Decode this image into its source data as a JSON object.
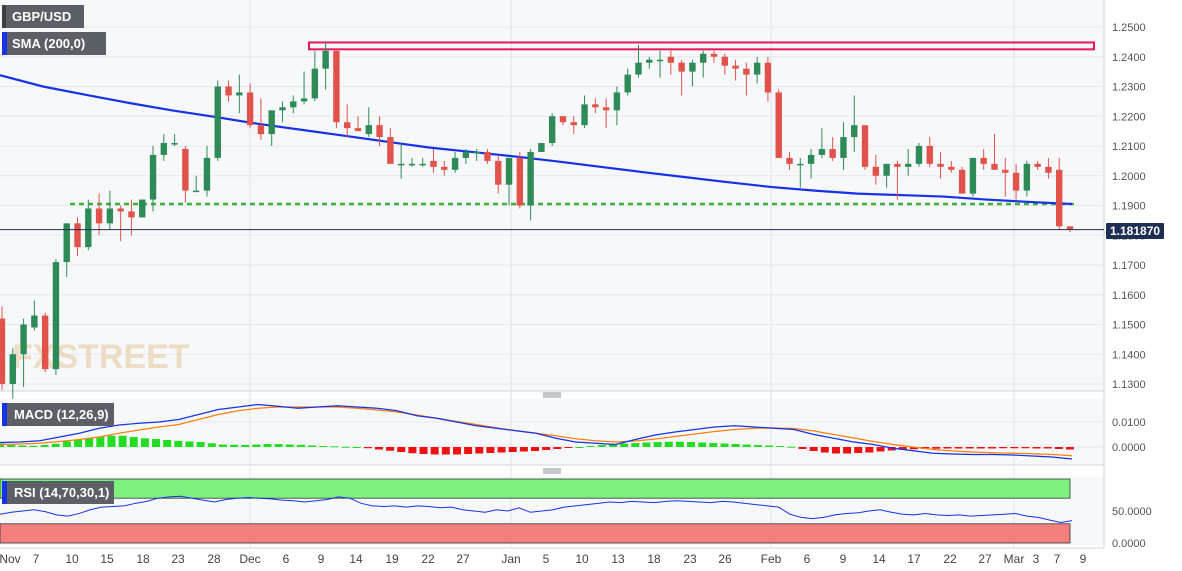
{
  "symbol": "GBP/USD",
  "indicators": {
    "sma_label": "SMA (200,0)",
    "macd_label": "MACD (12,26,9)",
    "rsi_label": "RSI (14,70,30,1)"
  },
  "watermark": "FXSTREET",
  "current_price_label": "1.181870",
  "price_axis": {
    "min": 1.125,
    "max": 1.255,
    "ticks": [
      "1.2500",
      "1.2400",
      "1.2300",
      "1.2200",
      "1.2100",
      "1.2000",
      "1.1900",
      "1.1800",
      "1.1700",
      "1.1600",
      "1.1500",
      "1.1400",
      "1.1300"
    ]
  },
  "macd_axis": {
    "ticks": [
      "0.0100",
      "0.0000"
    ]
  },
  "rsi_axis": {
    "ticks": [
      "50.0000",
      "0.0000"
    ]
  },
  "x_axis": {
    "ticks": [
      "Nov",
      "7",
      "10",
      "15",
      "18",
      "23",
      "28",
      "Dec",
      "6",
      "9",
      "14",
      "19",
      "22",
      "27",
      "Jan",
      "5",
      "10",
      "13",
      "18",
      "23",
      "26",
      "Feb",
      "6",
      "9",
      "14",
      "17",
      "22",
      "27",
      "Mar",
      "3",
      "7",
      "9"
    ]
  },
  "colors": {
    "up": "#2e8b57",
    "down": "#e0524a",
    "sma": "#1632e6",
    "macd": "#1632e6",
    "signal": "#ff7f0e",
    "hist_pos": "#22dd22",
    "hist_neg": "#ee1111",
    "resistance": "#e8175d",
    "support": "#3cb43c",
    "rsi_overbought": "#7ef07e",
    "rsi_oversold": "#f47f7f",
    "price_label": "#1f2f54"
  },
  "chart_data": {
    "type": "candlestick",
    "resistance_zone": [
      1.2425,
      1.2448
    ],
    "support_level": 1.1905,
    "current_price": 1.18187,
    "sma200": [
      1.2338,
      1.23,
      1.2272,
      1.2245,
      1.222,
      1.2198,
      1.2175,
      1.2155,
      1.2135,
      1.2115,
      1.2095,
      1.208,
      1.2065,
      1.2048,
      1.203,
      1.2012,
      1.1995,
      1.1978,
      1.1962,
      1.195,
      1.194,
      1.1935,
      1.193,
      1.192,
      1.1912,
      1.1905
    ],
    "candles": [
      [
        1.152,
        1.156,
        1.128,
        1.13
      ],
      [
        1.13,
        1.142,
        1.125,
        1.14
      ],
      [
        1.14,
        1.152,
        1.129,
        1.15
      ],
      [
        1.149,
        1.158,
        1.148,
        1.153
      ],
      [
        1.153,
        1.154,
        1.134,
        1.135
      ],
      [
        1.135,
        1.172,
        1.133,
        1.171
      ],
      [
        1.171,
        1.184,
        1.166,
        1.184
      ],
      [
        1.184,
        1.186,
        1.173,
        1.176
      ],
      [
        1.176,
        1.192,
        1.175,
        1.189
      ],
      [
        1.189,
        1.194,
        1.18,
        1.184
      ],
      [
        1.184,
        1.195,
        1.182,
        1.189
      ],
      [
        1.189,
        1.19,
        1.178,
        1.188
      ],
      [
        1.188,
        1.192,
        1.18,
        1.186
      ],
      [
        1.186,
        1.192,
        1.186,
        1.192
      ],
      [
        1.192,
        1.21,
        1.188,
        1.207
      ],
      [
        1.207,
        1.214,
        1.205,
        1.211
      ],
      [
        1.211,
        1.214,
        1.21,
        1.211
      ],
      [
        1.209,
        1.21,
        1.191,
        1.195
      ],
      [
        1.195,
        1.2,
        1.195,
        1.195
      ],
      [
        1.195,
        1.21,
        1.193,
        1.206
      ],
      [
        1.206,
        1.232,
        1.205,
        1.23
      ],
      [
        1.23,
        1.232,
        1.225,
        1.227
      ],
      [
        1.227,
        1.234,
        1.221,
        1.228
      ],
      [
        1.228,
        1.231,
        1.216,
        1.217
      ],
      [
        1.217,
        1.226,
        1.212,
        1.214
      ],
      [
        1.214,
        1.221,
        1.21,
        1.222
      ],
      [
        1.222,
        1.225,
        1.218,
        1.223
      ],
      [
        1.223,
        1.227,
        1.221,
        1.225
      ],
      [
        1.225,
        1.235,
        1.224,
        1.226
      ],
      [
        1.226,
        1.242,
        1.225,
        1.236
      ],
      [
        1.236,
        1.245,
        1.229,
        1.242
      ],
      [
        1.242,
        1.242,
        1.216,
        1.218
      ],
      [
        1.218,
        1.224,
        1.213,
        1.216
      ],
      [
        1.216,
        1.22,
        1.215,
        1.215
      ],
      [
        1.214,
        1.223,
        1.213,
        1.217
      ],
      [
        1.217,
        1.22,
        1.21,
        1.213
      ],
      [
        1.213,
        1.216,
        1.204,
        1.204
      ],
      [
        1.204,
        1.211,
        1.199,
        1.204
      ],
      [
        1.204,
        1.206,
        1.203,
        1.204
      ],
      [
        1.204,
        1.206,
        1.203,
        1.204
      ],
      [
        1.205,
        1.209,
        1.201,
        1.203
      ],
      [
        1.203,
        1.205,
        1.2,
        1.202
      ],
      [
        1.202,
        1.208,
        1.201,
        1.206
      ],
      [
        1.206,
        1.209,
        1.204,
        1.208
      ],
      [
        1.208,
        1.209,
        1.205,
        1.208
      ],
      [
        1.208,
        1.209,
        1.204,
        1.205
      ],
      [
        1.205,
        1.207,
        1.194,
        1.197
      ],
      [
        1.197,
        1.206,
        1.19,
        1.206
      ],
      [
        1.206,
        1.208,
        1.189,
        1.19
      ],
      [
        1.19,
        1.209,
        1.185,
        1.208
      ],
      [
        1.208,
        1.211,
        1.208,
        1.211
      ],
      [
        1.211,
        1.221,
        1.21,
        1.22
      ],
      [
        1.22,
        1.22,
        1.217,
        1.218
      ],
      [
        1.218,
        1.22,
        1.214,
        1.217
      ],
      [
        1.217,
        1.227,
        1.216,
        1.224
      ],
      [
        1.224,
        1.226,
        1.221,
        1.223
      ],
      [
        1.223,
        1.226,
        1.216,
        1.222
      ],
      [
        1.222,
        1.23,
        1.217,
        1.228
      ],
      [
        1.228,
        1.236,
        1.227,
        1.234
      ],
      [
        1.234,
        1.244,
        1.233,
        1.238
      ],
      [
        1.238,
        1.24,
        1.236,
        1.239
      ],
      [
        1.239,
        1.242,
        1.233,
        1.239
      ],
      [
        1.24,
        1.243,
        1.234,
        1.238
      ],
      [
        1.238,
        1.239,
        1.227,
        1.235
      ],
      [
        1.235,
        1.239,
        1.23,
        1.238
      ],
      [
        1.238,
        1.242,
        1.233,
        1.241
      ],
      [
        1.241,
        1.242,
        1.238,
        1.24
      ],
      [
        1.24,
        1.241,
        1.234,
        1.237
      ],
      [
        1.237,
        1.239,
        1.232,
        1.236
      ],
      [
        1.236,
        1.238,
        1.227,
        1.234
      ],
      [
        1.234,
        1.24,
        1.231,
        1.238
      ],
      [
        1.238,
        1.24,
        1.225,
        1.228
      ],
      [
        1.228,
        1.229,
        1.206,
        1.206
      ],
      [
        1.206,
        1.208,
        1.202,
        1.204
      ],
      [
        1.204,
        1.206,
        1.196,
        1.204
      ],
      [
        1.204,
        1.209,
        1.199,
        1.207
      ],
      [
        1.207,
        1.216,
        1.206,
        1.209
      ],
      [
        1.209,
        1.213,
        1.205,
        1.206
      ],
      [
        1.206,
        1.218,
        1.202,
        1.213
      ],
      [
        1.213,
        1.227,
        1.208,
        1.217
      ],
      [
        1.217,
        1.217,
        1.202,
        1.203
      ],
      [
        1.203,
        1.207,
        1.197,
        1.2
      ],
      [
        1.2,
        1.204,
        1.196,
        1.204
      ],
      [
        1.204,
        1.205,
        1.192,
        1.203
      ],
      [
        1.203,
        1.209,
        1.2,
        1.204
      ],
      [
        1.204,
        1.211,
        1.203,
        1.21
      ],
      [
        1.21,
        1.213,
        1.203,
        1.204
      ],
      [
        1.204,
        1.208,
        1.199,
        1.203
      ],
      [
        1.203,
        1.205,
        1.201,
        1.202
      ],
      [
        1.202,
        1.203,
        1.194,
        1.194
      ],
      [
        1.194,
        1.206,
        1.193,
        1.206
      ],
      [
        1.206,
        1.209,
        1.202,
        1.204
      ],
      [
        1.204,
        1.214,
        1.202,
        1.202
      ],
      [
        1.202,
        1.206,
        1.193,
        1.201
      ],
      [
        1.201,
        1.204,
        1.192,
        1.195
      ],
      [
        1.195,
        1.205,
        1.193,
        1.204
      ],
      [
        1.204,
        1.205,
        1.202,
        1.203
      ],
      [
        1.203,
        1.206,
        1.199,
        1.201
      ],
      [
        1.202,
        1.206,
        1.182,
        1.183
      ],
      [
        1.183,
        1.183,
        1.181,
        1.182
      ]
    ],
    "macd_hist": [
      0.0015,
      0.0008,
      0.0006,
      0.0005,
      0.0008,
      0.0013,
      0.0022,
      0.003,
      0.0036,
      0.004,
      0.0045,
      0.0045,
      0.004,
      0.0035,
      0.0032,
      0.0028,
      0.0025,
      0.0022,
      0.002,
      0.0015,
      0.001,
      0.0009,
      0.0008,
      0.001,
      0.0012,
      0.0012,
      0.001,
      0.0009,
      0.0006,
      0.0004,
      0.0003,
      0.0001,
      0.0,
      -0.0005,
      -0.001,
      -0.0015,
      -0.002,
      -0.0025,
      -0.0028,
      -0.003,
      -0.003,
      -0.003,
      -0.0028,
      -0.0026,
      -0.0024,
      -0.0022,
      -0.002,
      -0.0018,
      -0.0016,
      -0.0012,
      -0.0008,
      -0.0004,
      0.0,
      0.0004,
      0.0008,
      0.0012,
      0.0014,
      0.0016,
      0.0018,
      0.002,
      0.0021,
      0.0021,
      0.002,
      0.0018,
      0.0016,
      0.0014,
      0.0012,
      0.001,
      0.0008,
      0.0006,
      0.0004,
      0.0001,
      -0.0008,
      -0.0016,
      -0.0022,
      -0.0026,
      -0.0026,
      -0.0024,
      -0.0022,
      -0.0018,
      -0.0014,
      -0.0011,
      -0.0009,
      -0.0008,
      -0.0007,
      -0.0006,
      -0.0006,
      -0.0006,
      -0.0006,
      -0.0006,
      -0.0005,
      -0.0005,
      -0.0005,
      -0.0006,
      -0.0006,
      -0.0008,
      -0.001
    ],
    "macd_line": [
      0.0018,
      0.002,
      0.0025,
      0.004,
      0.0055,
      0.0075,
      0.0088,
      0.0095,
      0.01,
      0.011,
      0.013,
      0.015,
      0.016,
      0.017,
      0.0163,
      0.0155,
      0.016,
      0.0165,
      0.016,
      0.0155,
      0.0145,
      0.0125,
      0.0115,
      0.01,
      0.0085,
      0.0075,
      0.0065,
      0.0055,
      0.0035,
      0.002,
      0.0015,
      0.001,
      0.003,
      0.0048,
      0.006,
      0.007,
      0.008,
      0.0085,
      0.008,
      0.0075,
      0.007,
      0.005,
      0.0035,
      0.002,
      0.001,
      -0.0005,
      -0.0015,
      -0.0025,
      -0.0028,
      -0.003,
      -0.003,
      -0.0032,
      -0.0036,
      -0.004,
      -0.0048
    ],
    "signal_line": [
      0.001,
      0.0012,
      0.0015,
      0.0022,
      0.003,
      0.004,
      0.0055,
      0.0068,
      0.008,
      0.009,
      0.011,
      0.013,
      0.0145,
      0.0155,
      0.016,
      0.016,
      0.016,
      0.016,
      0.0155,
      0.0148,
      0.014,
      0.0128,
      0.0115,
      0.0102,
      0.009,
      0.0077,
      0.0065,
      0.0055,
      0.0045,
      0.0033,
      0.0025,
      0.002,
      0.0024,
      0.0032,
      0.0042,
      0.0052,
      0.0062,
      0.007,
      0.0075,
      0.0076,
      0.0074,
      0.0064,
      0.005,
      0.0036,
      0.0022,
      0.001,
      0.0,
      -0.001,
      -0.0016,
      -0.002,
      -0.0023,
      -0.0025,
      -0.0027,
      -0.003,
      -0.0035
    ],
    "rsi": [
      45,
      48,
      50,
      52,
      49,
      44,
      42,
      46,
      52,
      56,
      57,
      58,
      62,
      65,
      70,
      72,
      73,
      70,
      67,
      64,
      68,
      70,
      71,
      70,
      69,
      67,
      66,
      64,
      66,
      68,
      72,
      70,
      62,
      58,
      57,
      58,
      56,
      58,
      57,
      55,
      56,
      52,
      50,
      48,
      52,
      50,
      55,
      48,
      50,
      52,
      56,
      58,
      60,
      62,
      64,
      63,
      65,
      64,
      63,
      65,
      66,
      65,
      64,
      63,
      65,
      64,
      62,
      60,
      58,
      56,
      45,
      40,
      38,
      40,
      44,
      46,
      47,
      50,
      52,
      48,
      45,
      44,
      46,
      44,
      43,
      44,
      42,
      43,
      44,
      45,
      46,
      42,
      40,
      36,
      32,
      35
    ]
  }
}
